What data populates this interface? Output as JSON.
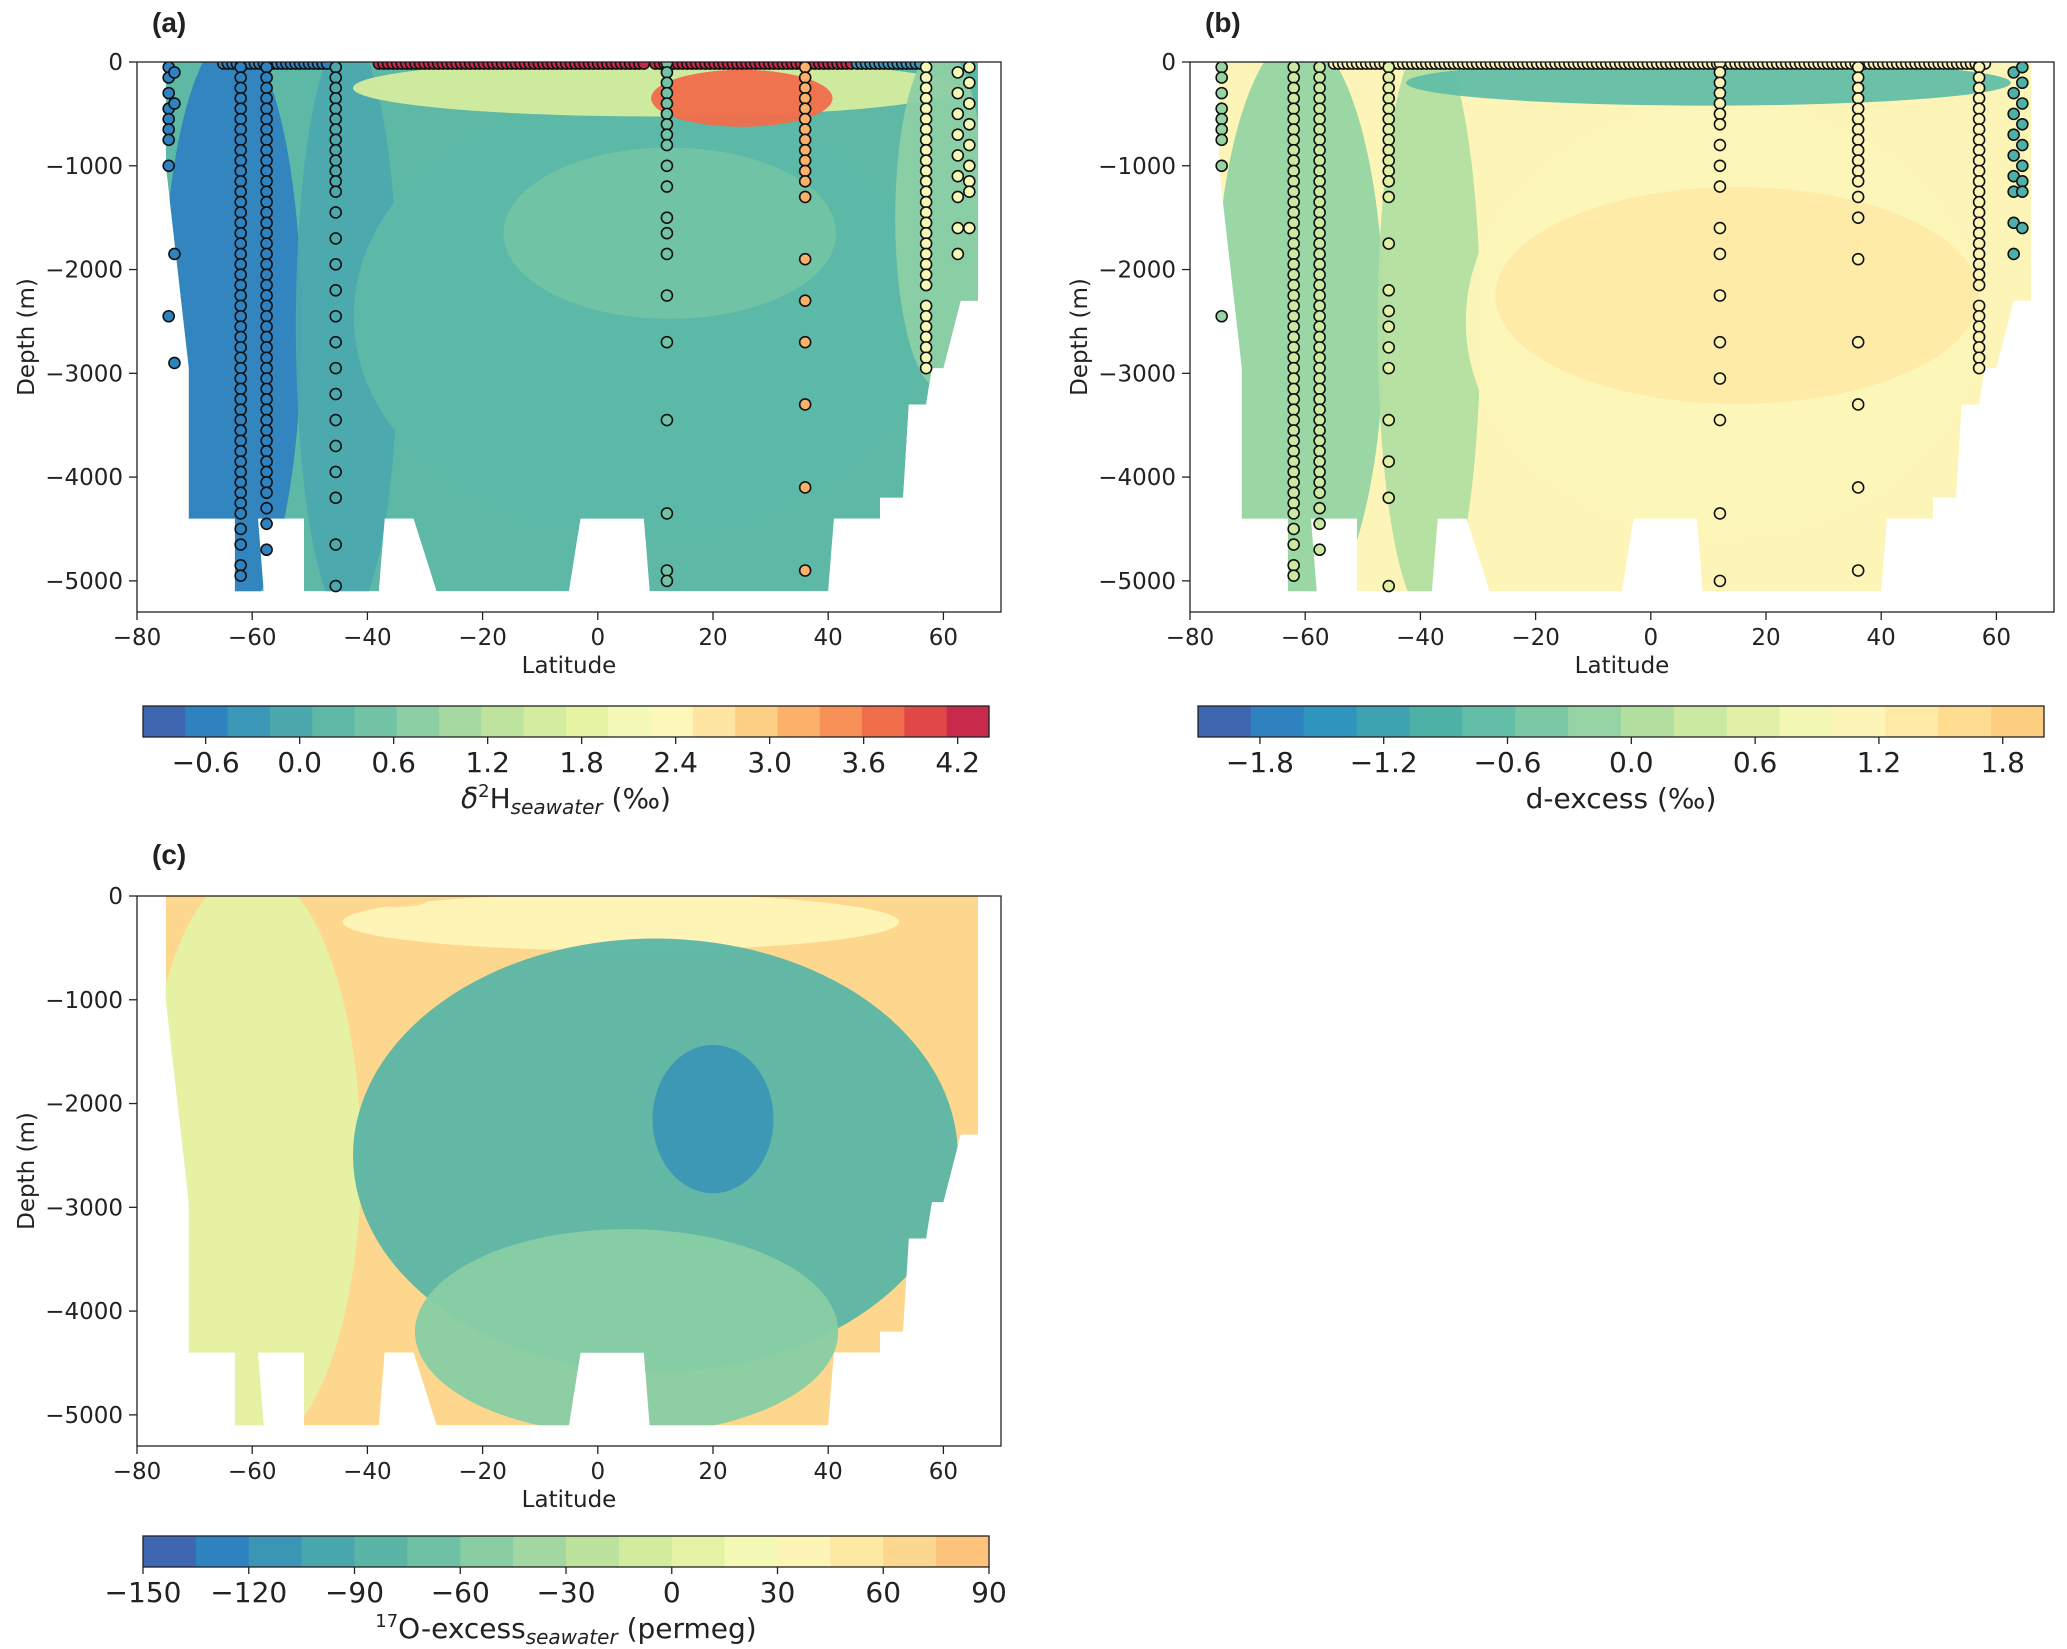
{
  "chart_data": [
    {
      "panel": "(a)",
      "type": "heatmap",
      "xlabel": "Latitude",
      "ylabel": "Depth (m)",
      "xlim": [
        -80,
        70
      ],
      "ylim": [
        -5300,
        0
      ],
      "xticks": [
        -80,
        -60,
        -40,
        -20,
        0,
        20,
        40,
        60
      ],
      "yticks": [
        0,
        -1000,
        -2000,
        -3000,
        -4000,
        -5000
      ],
      "grid": false,
      "colorbar": {
        "label_base": "δ",
        "label_sup": "2",
        "label_main": "H",
        "label_sub": "seawater",
        "label_unit": " (‰)",
        "range": [
          -1.0,
          4.4
        ],
        "ticks": [
          "−0.6",
          "0.0",
          "0.6",
          "1.2",
          "1.8",
          "2.4",
          "3.0",
          "3.6",
          "4.2"
        ],
        "tick_values": [
          -0.6,
          0.0,
          0.6,
          1.2,
          1.8,
          2.4,
          3.0,
          3.6,
          4.2
        ],
        "colors": [
          "#3f66b0",
          "#2f82c0",
          "#3b98b9",
          "#4ba8ad",
          "#5db8a6",
          "#72c3a5",
          "#8ccfa4",
          "#a5d9a1",
          "#bde39d",
          "#d3ec9d",
          "#e6f3a3",
          "#f5f9b7",
          "#fdf7ba",
          "#fee6a2",
          "#fdcf84",
          "#fcb16a",
          "#f89157",
          "#f06d4a",
          "#e04848",
          "#c82a4c"
        ]
      },
      "background_field": [
        {
          "region": "lat -75 to -52, 0 to -5100 m",
          "value": -0.5
        },
        {
          "region": "lat -52 to -35, 0 to -5100 m",
          "value": -0.1
        },
        {
          "region": "lat -40 to 55, -500 to -4400 m",
          "value": 0.2
        },
        {
          "region": "lat -15 to 40, -900 to -2400 m",
          "value": 0.5
        },
        {
          "region": "lat -40 to 60, 0 to -500 m",
          "value": 1.5
        },
        {
          "region": "lat 10 to 40, -100 to -600 m",
          "value": 3.6
        },
        {
          "region": "lat 52 to 67, 0 to -3000 m",
          "value": 0.7
        }
      ],
      "stations": [
        {
          "lat": -74.5,
          "depths": [
            -50,
            -150,
            -300,
            -450,
            -550,
            -650,
            -750,
            -1000,
            -2450
          ],
          "value": -0.5
        },
        {
          "lat": -73.5,
          "depths": [
            -100,
            -400,
            -1850,
            -2900
          ],
          "value": -0.5
        },
        {
          "lat": -62.0,
          "depths": [
            -50,
            -150,
            -250,
            -350,
            -450,
            -550,
            -650,
            -750,
            -850,
            -950,
            -1050,
            -1150,
            -1250,
            -1350,
            -1450,
            -1550,
            -1650,
            -1750,
            -1850,
            -1950,
            -2050,
            -2150,
            -2250,
            -2350,
            -2450,
            -2550,
            -2650,
            -2750,
            -2850,
            -2950,
            -3050,
            -3150,
            -3250,
            -3350,
            -3450,
            -3550,
            -3650,
            -3750,
            -3850,
            -3950,
            -4050,
            -4150,
            -4250,
            -4350,
            -4500,
            -4650,
            -4850,
            -4950
          ],
          "value": -0.5
        },
        {
          "lat": -57.5,
          "depths": [
            -50,
            -150,
            -250,
            -350,
            -450,
            -550,
            -650,
            -750,
            -850,
            -950,
            -1050,
            -1150,
            -1250,
            -1350,
            -1450,
            -1550,
            -1650,
            -1750,
            -1850,
            -1950,
            -2050,
            -2150,
            -2250,
            -2350,
            -2450,
            -2550,
            -2650,
            -2750,
            -2850,
            -2950,
            -3050,
            -3150,
            -3250,
            -3350,
            -3450,
            -3550,
            -3650,
            -3750,
            -3850,
            -3950,
            -4050,
            -4150,
            -4300,
            -4450,
            -4700
          ],
          "value": -0.5
        },
        {
          "lat": -45.5,
          "depths": [
            -50,
            -150,
            -250,
            -350,
            -450,
            -550,
            -650,
            -750,
            -850,
            -950,
            -1050,
            -1150,
            -1250,
            -1450,
            -1700,
            -1950,
            -2200,
            -2450,
            -2700,
            -2950,
            -3200,
            -3450,
            -3700,
            -3950,
            -4200,
            -4650,
            -5050
          ],
          "value": -0.1
        },
        {
          "lat": 12.0,
          "depths": [
            -10,
            -100,
            -200,
            -300,
            -400,
            -500,
            -600,
            -700,
            -800,
            -1000,
            -1200,
            -1500,
            -1650,
            -1850,
            -2250,
            -2700,
            -3450,
            -4350,
            -4900,
            -5000
          ],
          "value": 0.4
        },
        {
          "lat": 36.0,
          "depths": [
            -50,
            -150,
            -250,
            -350,
            -450,
            -550,
            -650,
            -750,
            -850,
            -950,
            -1050,
            -1150,
            -1300,
            -1900,
            -2300,
            -2700,
            -3300,
            -4100,
            -4900
          ],
          "value": 3.2
        },
        {
          "lat": 57.0,
          "depths": [
            -50,
            -150,
            -250,
            -350,
            -450,
            -550,
            -650,
            -750,
            -850,
            -950,
            -1050,
            -1150,
            -1250,
            -1350,
            -1450,
            -1550,
            -1650,
            -1750,
            -1850,
            -1950,
            -2050,
            -2150,
            -2350,
            -2450,
            -2550,
            -2650,
            -2750,
            -2850,
            -2950
          ],
          "value": 2.1
        },
        {
          "lat": 62.5,
          "depths": [
            -100,
            -300,
            -500,
            -700,
            -900,
            -1100,
            -1300,
            -1600,
            -1850
          ],
          "value": 2.1
        },
        {
          "lat": 64.5,
          "depths": [
            -50,
            -200,
            -400,
            -600,
            -800,
            -1000,
            -1150,
            -1250,
            -1600
          ],
          "value": 2.1
        }
      ],
      "surface_samples": [
        {
          "lat_from": -65,
          "lat_to": -47,
          "value": -0.5
        },
        {
          "lat_from": -38,
          "lat_to": 8,
          "value": 4.2
        },
        {
          "lat_from": 10,
          "lat_to": 44,
          "value": 4.2
        },
        {
          "lat_from": 45,
          "lat_to": 56,
          "value": -0.2
        }
      ]
    },
    {
      "panel": "(b)",
      "type": "heatmap",
      "xlabel": "Latitude",
      "ylabel": "Depth (m)",
      "xlim": [
        -80,
        70
      ],
      "ylim": [
        -5300,
        0
      ],
      "xticks": [
        -80,
        -60,
        -40,
        -20,
        0,
        20,
        40,
        60
      ],
      "yticks": [
        0,
        -1000,
        -2000,
        -3000,
        -4000,
        -5000
      ],
      "grid": false,
      "colorbar": {
        "label": "d-excess (‰)",
        "range": [
          -2.1,
          2.0
        ],
        "ticks": [
          "−1.8",
          "−1.2",
          "−0.6",
          "0.0",
          "0.6",
          "1.2",
          "1.8"
        ],
        "tick_values": [
          -1.8,
          -1.2,
          -0.6,
          0.0,
          0.6,
          1.2,
          1.8
        ],
        "colors": [
          "#3f66b0",
          "#2f82c0",
          "#2f95bf",
          "#3ea3b1",
          "#4db1a8",
          "#62bea6",
          "#7bc9a4",
          "#96d4a3",
          "#b2dfa0",
          "#cbe9a0",
          "#e0f1a5",
          "#f2f8b4",
          "#fdf5b8",
          "#feeaa5",
          "#fedd90",
          "#fdcd80"
        ]
      },
      "background_field": [
        {
          "region": "lat -75 to -47, 0 to -5100 m",
          "value": -0.1
        },
        {
          "region": "lat -47 to -30, 0 to -5100 m",
          "value": 0.2
        },
        {
          "region": "lat -30 to 55, -600 to -4400 m",
          "value": 1.0
        },
        {
          "region": "lat -25 to 55, -1300 to -3200 m",
          "value": 1.4
        },
        {
          "region": "lat -40 to 60, 0 to -400 m",
          "value": -0.7
        }
      ],
      "stations": [
        {
          "lat": -74.5,
          "depths": [
            -50,
            -150,
            -300,
            -450,
            -550,
            -650,
            -750,
            -1000,
            -2450
          ],
          "value": -0.3
        },
        {
          "lat": -62.0,
          "depths": [
            -50,
            -150,
            -250,
            -350,
            -450,
            -550,
            -650,
            -750,
            -850,
            -950,
            -1050,
            -1150,
            -1250,
            -1350,
            -1450,
            -1550,
            -1650,
            -1750,
            -1850,
            -1950,
            -2050,
            -2150,
            -2250,
            -2350,
            -2450,
            -2550,
            -2650,
            -2750,
            -2850,
            -2950,
            -3050,
            -3150,
            -3250,
            -3350,
            -3450,
            -3550,
            -3650,
            -3750,
            -3850,
            -3950,
            -4050,
            -4150,
            -4250,
            -4350,
            -4500,
            -4650,
            -4850,
            -4950
          ],
          "value": 0.4
        },
        {
          "lat": -57.5,
          "depths": [
            -50,
            -150,
            -250,
            -350,
            -450,
            -550,
            -650,
            -750,
            -850,
            -950,
            -1050,
            -1150,
            -1250,
            -1350,
            -1450,
            -1550,
            -1650,
            -1750,
            -1850,
            -1950,
            -2050,
            -2150,
            -2250,
            -2350,
            -2450,
            -2550,
            -2650,
            -2750,
            -2850,
            -2950,
            -3050,
            -3150,
            -3250,
            -3350,
            -3450,
            -3550,
            -3650,
            -3750,
            -3850,
            -3950,
            -4050,
            -4150,
            -4300,
            -4450,
            -4700
          ],
          "value": 0.4
        },
        {
          "lat": -45.5,
          "depths": [
            -50,
            -150,
            -250,
            -350,
            -450,
            -550,
            -650,
            -750,
            -850,
            -950,
            -1050,
            -1150,
            -1300,
            -1750,
            -2200,
            -2400,
            -2550,
            -2750,
            -2950,
            -3450,
            -3850,
            -4200,
            -5050
          ],
          "value": 0.6
        },
        {
          "lat": 12.0,
          "depths": [
            -10,
            -100,
            -200,
            -300,
            -400,
            -500,
            -600,
            -800,
            -1000,
            -1200,
            -1600,
            -1850,
            -2250,
            -2700,
            -3050,
            -3450,
            -4350,
            -5000
          ],
          "value": 1.2
        },
        {
          "lat": 36.0,
          "depths": [
            -50,
            -150,
            -250,
            -350,
            -450,
            -550,
            -650,
            -750,
            -850,
            -950,
            -1050,
            -1150,
            -1300,
            -1500,
            -1900,
            -2700,
            -3300,
            -4100,
            -4900
          ],
          "value": 1.2
        },
        {
          "lat": 57.0,
          "depths": [
            -50,
            -150,
            -250,
            -350,
            -450,
            -550,
            -650,
            -750,
            -850,
            -950,
            -1050,
            -1150,
            -1250,
            -1350,
            -1450,
            -1550,
            -1650,
            -1750,
            -1850,
            -1950,
            -2050,
            -2150,
            -2350,
            -2450,
            -2550,
            -2650,
            -2750,
            -2850,
            -2950
          ],
          "value": 1.2
        },
        {
          "lat": 63.0,
          "depths": [
            -100,
            -300,
            -500,
            -700,
            -900,
            -1100,
            -1250,
            -1550,
            -1850
          ],
          "value": -0.9
        },
        {
          "lat": 64.5,
          "depths": [
            -50,
            -200,
            -400,
            -600,
            -800,
            -1000,
            -1150,
            -1250,
            -1600
          ],
          "value": -0.9
        }
      ],
      "surface_samples": [
        {
          "lat_from": -55,
          "lat_to": 58,
          "value": 1.2
        }
      ]
    },
    {
      "panel": "(c)",
      "type": "heatmap",
      "xlabel": "Latitude",
      "ylabel": "Depth (m)",
      "xlim": [
        -80,
        70
      ],
      "ylim": [
        -5300,
        0
      ],
      "xticks": [
        -80,
        -60,
        -40,
        -20,
        0,
        20,
        40,
        60
      ],
      "yticks": [
        0,
        -1000,
        -2000,
        -3000,
        -4000,
        -5000
      ],
      "grid": false,
      "colorbar": {
        "label_base": "",
        "label_sup": "17",
        "label_main": "O-excess",
        "label_sub": "seawater",
        "label_unit": " (permeg)",
        "range": [
          -150,
          90
        ],
        "ticks": [
          "−150",
          "−120",
          "−90",
          "−60",
          "−30",
          "0",
          "30",
          "60",
          "90"
        ],
        "tick_values": [
          -150,
          -120,
          -90,
          -60,
          -30,
          0,
          30,
          60,
          90
        ],
        "colors": [
          "#3f66b0",
          "#2f82c0",
          "#3a96b4",
          "#4aa6ad",
          "#5ab5a7",
          "#6fc1a5",
          "#88cda4",
          "#a2d7a1",
          "#bce29e",
          "#d3eb9d",
          "#e6f2a5",
          "#f5f9b6",
          "#fdf5b8",
          "#fee8a2",
          "#fed78e",
          "#fdc37a"
        ]
      },
      "background_field": [
        {
          "region": "lat -78 to -42, 0 to -5100 m",
          "value": 0
        },
        {
          "region": "lat -42 to 50, 0 to -500 m",
          "value": 30
        },
        {
          "region": "lat -40 to -30, 0 to -100 m",
          "value": 60
        },
        {
          "region": "lat -40 to 60, -600 to -4400 m",
          "value": -90
        },
        {
          "region": "lat 10 to 30, -1500 to -2800 m",
          "value": -120
        },
        {
          "region": "lat -30 to 40, -3300 to -5100 m",
          "value": -60
        }
      ],
      "stations": [],
      "surface_samples": []
    }
  ]
}
